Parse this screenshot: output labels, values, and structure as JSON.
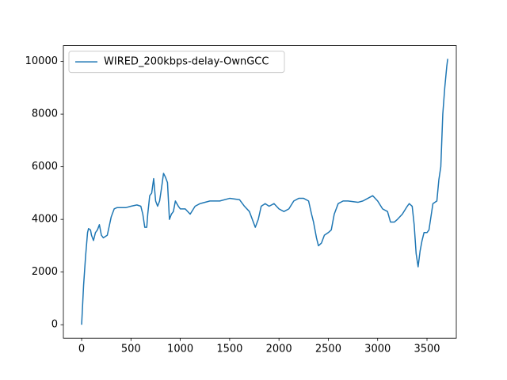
{
  "chart_data": {
    "type": "line",
    "x": [
      0,
      20,
      40,
      60,
      70,
      90,
      100,
      120,
      140,
      160,
      180,
      200,
      220,
      260,
      300,
      330,
      360,
      400,
      450,
      500,
      560,
      600,
      620,
      640,
      660,
      670,
      690,
      710,
      730,
      750,
      770,
      790,
      810,
      830,
      850,
      870,
      890,
      910,
      930,
      950,
      980,
      1000,
      1050,
      1100,
      1150,
      1200,
      1300,
      1400,
      1500,
      1600,
      1650,
      1700,
      1740,
      1760,
      1790,
      1820,
      1860,
      1900,
      1950,
      2000,
      2050,
      2100,
      2150,
      2200,
      2250,
      2300,
      2330,
      2350,
      2380,
      2400,
      2430,
      2460,
      2500,
      2530,
      2560,
      2600,
      2650,
      2700,
      2800,
      2850,
      2900,
      2950,
      3000,
      3050,
      3100,
      3130,
      3170,
      3200,
      3250,
      3300,
      3320,
      3350,
      3370,
      3390,
      3410,
      3430,
      3450,
      3470,
      3500,
      3520,
      3560,
      3600,
      3620,
      3640,
      3660,
      3680,
      3700,
      3710
    ],
    "series": [
      {
        "name": "WIRED_200kbps-delay-OwnGCC",
        "color": "#1f77b4",
        "values": [
          0,
          1500,
          2600,
          3500,
          3650,
          3600,
          3400,
          3200,
          3500,
          3600,
          3800,
          3400,
          3300,
          3400,
          4100,
          4400,
          4450,
          4450,
          4450,
          4500,
          4550,
          4500,
          4200,
          3700,
          3700,
          4200,
          4900,
          5000,
          5550,
          4700,
          4500,
          4700,
          5200,
          5750,
          5600,
          5400,
          4000,
          4200,
          4300,
          4700,
          4500,
          4400,
          4400,
          4200,
          4500,
          4600,
          4700,
          4700,
          4800,
          4750,
          4500,
          4300,
          3900,
          3700,
          4000,
          4500,
          4600,
          4500,
          4600,
          4400,
          4300,
          4400,
          4700,
          4800,
          4800,
          4700,
          4200,
          3900,
          3300,
          3000,
          3100,
          3400,
          3500,
          3600,
          4200,
          4600,
          4700,
          4700,
          4650,
          4700,
          4800,
          4900,
          4700,
          4400,
          4300,
          3900,
          3900,
          4000,
          4200,
          4500,
          4600,
          4500,
          3800,
          2700,
          2200,
          2800,
          3200,
          3500,
          3500,
          3600,
          4600,
          4700,
          5500,
          6000,
          8000,
          9000,
          9800,
          10100
        ]
      }
    ],
    "xlim": [
      -185,
      3797
    ],
    "ylim": [
      -512,
      10602
    ],
    "xticks": [
      0,
      500,
      1000,
      1500,
      2000,
      2500,
      3000,
      3500
    ],
    "yticks": [
      0,
      2000,
      4000,
      6000,
      8000,
      10000
    ],
    "legend": "upper left"
  }
}
